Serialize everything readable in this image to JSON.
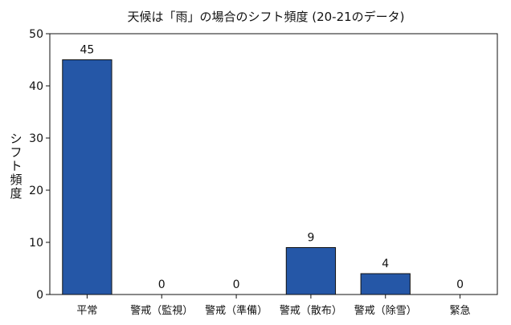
{
  "chart_data": {
    "type": "bar",
    "title": "天候は「雨」の場合のシフト頻度 (20-21のデータ)",
    "xlabel": "",
    "ylabel": "シフト頻度",
    "categories": [
      "平常",
      "警戒（監視）",
      "警戒（準備）",
      "警戒（散布）",
      "警戒（除雪）",
      "緊急"
    ],
    "values": [
      45,
      0,
      0,
      9,
      4,
      0
    ],
    "ylim": [
      0,
      50
    ],
    "yticks": [
      0,
      10,
      20,
      30,
      40,
      50
    ],
    "grid": false,
    "legend": "none",
    "bar_color": "#2557a7",
    "bar_edge_color": "#111111"
  }
}
